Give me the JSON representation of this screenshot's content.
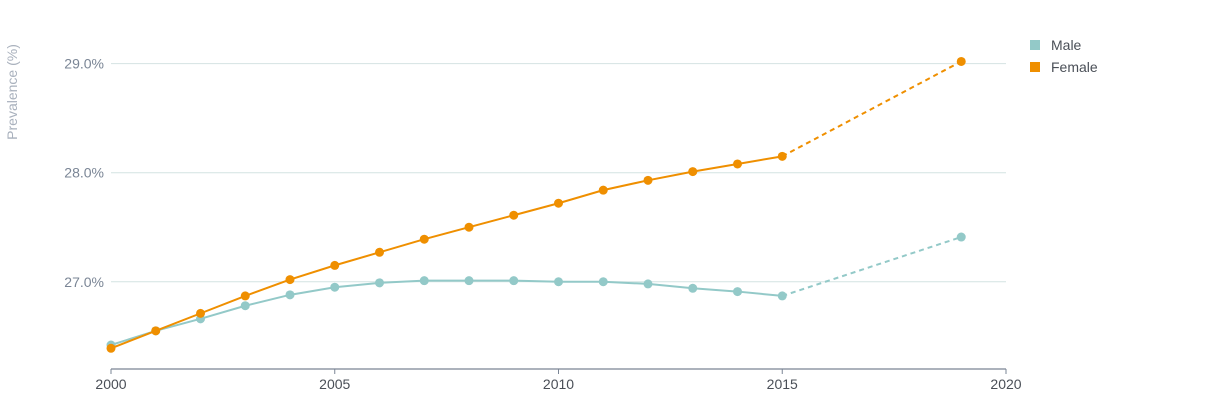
{
  "chart_data": {
    "type": "line",
    "ylabel": "Prevalence (%)",
    "xlim": [
      2000,
      2020
    ],
    "ylim": [
      26.2,
      29.4
    ],
    "x_ticks": [
      2000,
      2005,
      2010,
      2015,
      2020
    ],
    "x_tick_labels": [
      "2000",
      "2005",
      "2010",
      "2015",
      "2020"
    ],
    "y_ticks": [
      27.0,
      28.0,
      29.0
    ],
    "y_tick_labels": [
      "27.0%",
      "28.0%",
      "29.0%"
    ],
    "grid": true,
    "legend_position": "top-right",
    "series": [
      {
        "name": "Male",
        "color": "#93c9c8",
        "x": [
          2000,
          2001,
          2002,
          2003,
          2004,
          2005,
          2006,
          2007,
          2008,
          2009,
          2010,
          2011,
          2012,
          2013,
          2014,
          2015
        ],
        "values": [
          26.42,
          26.55,
          26.66,
          26.78,
          26.88,
          26.95,
          26.99,
          27.01,
          27.01,
          27.01,
          27.0,
          27.0,
          26.98,
          26.94,
          26.91,
          26.87
        ],
        "projection": {
          "x": [
            2015,
            2019
          ],
          "values": [
            26.87,
            27.41
          ]
        }
      },
      {
        "name": "Female",
        "color": "#ef8f00",
        "x": [
          2000,
          2001,
          2002,
          2003,
          2004,
          2005,
          2006,
          2007,
          2008,
          2009,
          2010,
          2011,
          2012,
          2013,
          2014,
          2015
        ],
        "values": [
          26.39,
          26.55,
          26.71,
          26.87,
          27.02,
          27.15,
          27.27,
          27.39,
          27.5,
          27.61,
          27.72,
          27.84,
          27.93,
          28.01,
          28.08,
          28.15
        ],
        "projection": {
          "x": [
            2015,
            2019
          ],
          "values": [
            28.15,
            29.02
          ]
        }
      }
    ]
  }
}
